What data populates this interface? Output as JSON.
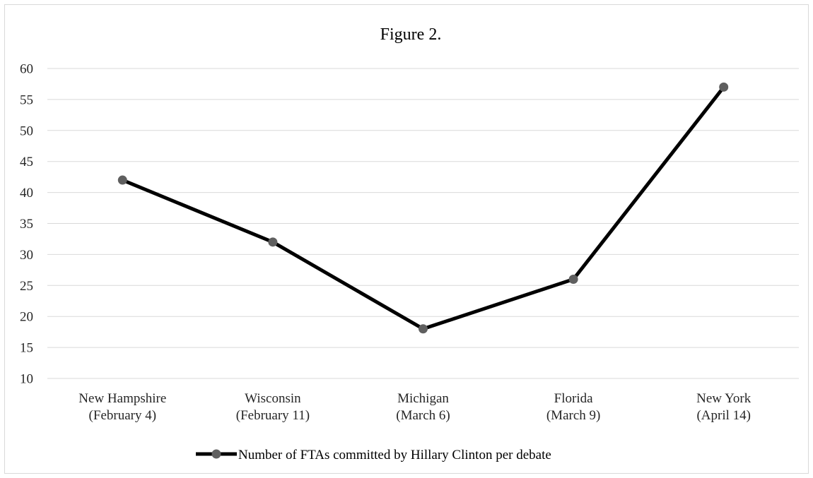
{
  "chart_data": {
    "type": "line",
    "title": "Figure 2.",
    "xlabel": "",
    "ylabel": "",
    "categories": [
      [
        "New Hampshire",
        "(February 4)"
      ],
      [
        "Wisconsin",
        "(February 11)"
      ],
      [
        "Michigan",
        "(March 6)"
      ],
      [
        "Florida",
        "(March 9)"
      ],
      [
        "New York",
        "(April 14)"
      ]
    ],
    "series": [
      {
        "name": "Number of FTAs committed by Hillary Clinton per debate",
        "values": [
          42,
          32,
          18,
          26,
          57
        ]
      }
    ],
    "ylim": [
      10,
      60
    ],
    "yticks": [
      "10",
      "15",
      "20",
      "25",
      "30",
      "35",
      "40",
      "45",
      "50",
      "55",
      "60"
    ],
    "grid": true,
    "legend": "bottom",
    "colors": {
      "line": "#000000",
      "marker": "#5f5f5f",
      "grid": "#d9d9d9",
      "tick_text": "#262626"
    }
  }
}
